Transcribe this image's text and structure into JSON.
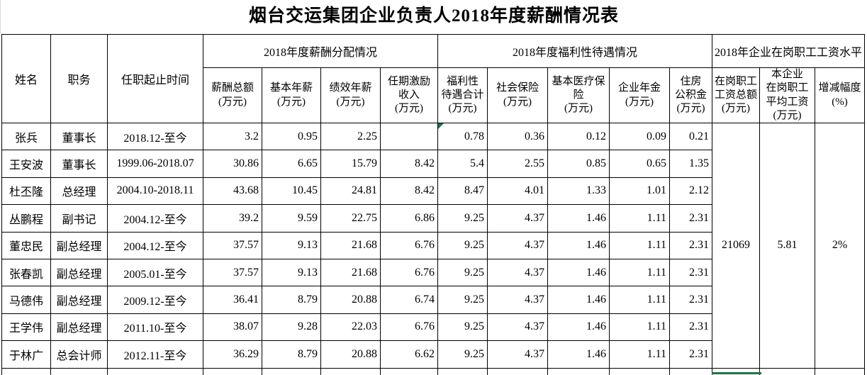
{
  "title": "烟台交运集团企业负责人2018年度薪酬情况表",
  "colors": {
    "selection_green": "#217346",
    "flag_green": "#1e7145",
    "border_black": "#000000"
  },
  "table": {
    "base_headers": [
      "姓名",
      "职务",
      "任职起止时间"
    ],
    "groups": [
      {
        "label": "2018年度薪酬分配情况",
        "span": 4
      },
      {
        "label": "2018年度福利性待遇情况",
        "span": 5
      },
      {
        "label": "2018年企业在岗职工工资水平",
        "span": 3
      }
    ],
    "sub_headers": [
      "薪酬总额\n(万元)",
      "基本年薪\n(万元)",
      "绩效年薪\n(万元)",
      "任期激励\n收入\n(万元)",
      "福利性\n待遇合计\n(万元)",
      "社会保险\n(万元)",
      "基本医疗保\n险\n(万元)",
      "企业年金\n(万元)",
      "住房\n公积金\n(万元)",
      "在岗职工\n工资总额\n(万元)",
      "本企业\n在岗职工\n平均工资\n(万元)",
      "增减幅度\n(%)"
    ],
    "rows": [
      {
        "name": "张兵",
        "position": "董事长",
        "term": "2018.12-至今",
        "values": [
          "3.2",
          "0.95",
          "2.25",
          "",
          "0.78",
          "0.36",
          "0.12",
          "0.09",
          "0.21"
        ]
      },
      {
        "name": "王安波",
        "position": "董事长",
        "term": "1999.06-2018.07",
        "values": [
          "30.86",
          "6.65",
          "15.79",
          "8.42",
          "5.4",
          "2.55",
          "0.85",
          "0.65",
          "1.35"
        ]
      },
      {
        "name": "杜丕隆",
        "position": "总经理",
        "term": "2004.10-2018.11",
        "values": [
          "43.68",
          "10.45",
          "24.81",
          "8.42",
          "8.47",
          "4.01",
          "1.33",
          "1.01",
          "2.12"
        ]
      },
      {
        "name": "丛鹏程",
        "position": "副书记",
        "term": "2004.12-至今",
        "values": [
          "39.2",
          "9.59",
          "22.75",
          "6.86",
          "9.25",
          "4.37",
          "1.46",
          "1.11",
          "2.31"
        ]
      },
      {
        "name": "董忠民",
        "position": "副总经理",
        "term": "2004.12-至今",
        "values": [
          "37.57",
          "9.13",
          "21.68",
          "6.76",
          "9.25",
          "4.37",
          "1.46",
          "1.11",
          "2.31"
        ]
      },
      {
        "name": "张春凯",
        "position": "副总经理",
        "term": "2005.01-至今",
        "values": [
          "37.57",
          "9.13",
          "21.68",
          "6.76",
          "9.25",
          "4.37",
          "1.46",
          "1.11",
          "2.31"
        ]
      },
      {
        "name": "马德伟",
        "position": "副总经理",
        "term": "2009.12-至今",
        "values": [
          "36.41",
          "8.79",
          "20.88",
          "6.74",
          "9.25",
          "4.37",
          "1.46",
          "1.11",
          "2.31"
        ]
      },
      {
        "name": "王学伟",
        "position": "副总经理",
        "term": "2011.10-至今",
        "values": [
          "38.07",
          "9.28",
          "22.03",
          "6.76",
          "9.25",
          "4.37",
          "1.46",
          "1.11",
          "2.31"
        ]
      },
      {
        "name": "于林广",
        "position": "总会计师",
        "term": "2012.11-至今",
        "values": [
          "36.29",
          "8.79",
          "20.88",
          "6.62",
          "9.25",
          "4.37",
          "1.46",
          "1.11",
          "2.31"
        ]
      }
    ],
    "company_wage": {
      "total": "21069",
      "average": "5.81",
      "change": "2%"
    },
    "flagged_cell": {
      "row": 0,
      "value_index": 4
    }
  }
}
